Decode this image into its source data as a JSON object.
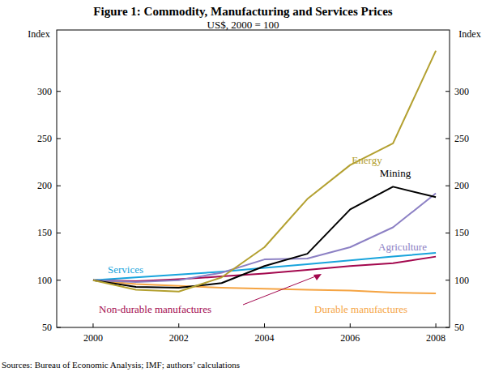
{
  "chart_data": {
    "type": "line",
    "title": "Figure 1: Commodity, Manufacturing and Services Prices",
    "subtitle": "US$, 2000 = 100",
    "y_label": "Index",
    "y2_label": "Index",
    "source": "Sources: Bureau of Economic Analysis; IMF; authors’ calculations",
    "x": [
      2000,
      2001,
      2002,
      2003,
      2004,
      2005,
      2006,
      2007,
      2008
    ],
    "xlim": [
      1999.15,
      2008.32
    ],
    "xticks": [
      2000,
      2002,
      2004,
      2006,
      2008
    ],
    "ylim": [
      50,
      365
    ],
    "yticks": [
      50,
      100,
      150,
      200,
      250,
      300
    ],
    "y2lim": [
      50,
      365
    ],
    "y2ticks": [
      50,
      100,
      150,
      200,
      250,
      300
    ],
    "grid": false,
    "series": [
      {
        "name": "Energy",
        "color": "#b3a030",
        "values": [
          100,
          90,
          88,
          103,
          135,
          186,
          222,
          245,
          343
        ]
      },
      {
        "name": "Mining",
        "color": "#000000",
        "values": [
          100,
          93,
          92,
          97,
          115,
          128,
          175,
          199,
          188
        ]
      },
      {
        "name": "Agriculture",
        "color": "#8c80c4",
        "values": [
          100,
          98,
          100,
          108,
          122,
          123,
          135,
          156,
          192
        ]
      },
      {
        "name": "Services",
        "color": "#18a4dc",
        "values": [
          100,
          103,
          106,
          109,
          113,
          117,
          121,
          125,
          129
        ]
      },
      {
        "name": "Non-durable manufactures",
        "color": "#a3084e",
        "values": [
          100,
          99,
          101,
          104,
          107,
          111,
          115,
          118,
          125
        ]
      },
      {
        "name": "Durable manufactures",
        "color": "#f5a443",
        "values": [
          100,
          96,
          94,
          92,
          91,
          90,
          89,
          87,
          86
        ]
      }
    ]
  }
}
